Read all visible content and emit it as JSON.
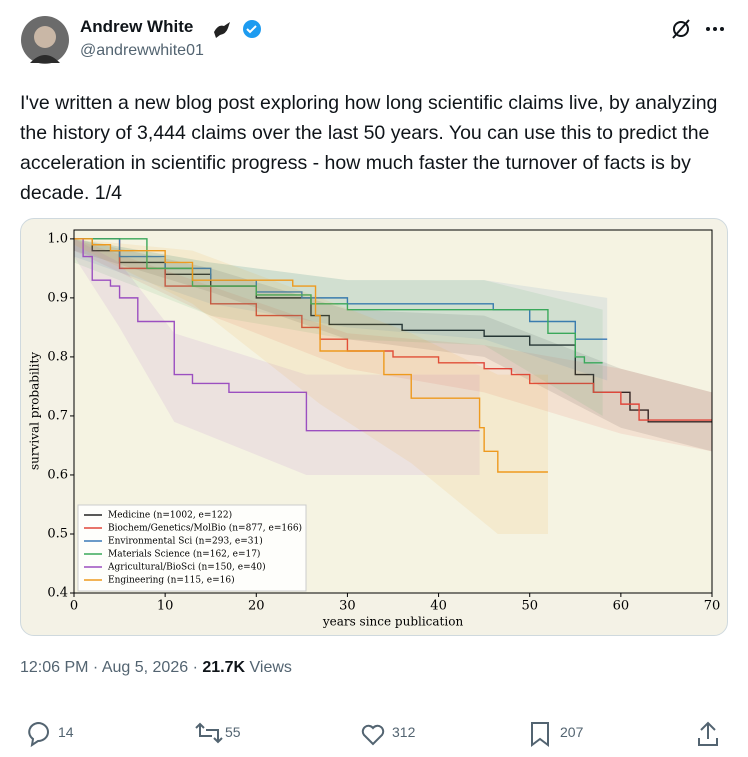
{
  "author": {
    "name": "Andrew White",
    "handle": "@andrewwhite01"
  },
  "text": "I've written a new blog post exploring how long scientific claims live, by analyzing the history of 3,444 claims over the last 50 years. You can use this to predict the acceleration in scientific progress - how much faster the turnover of facts is by decade. 1/4",
  "chart_data": {
    "type": "line",
    "step": true,
    "xlabel": "years since publication",
    "ylabel": "survival probability",
    "xlim": [
      0,
      70
    ],
    "ylim": [
      0.4,
      1.015
    ],
    "xticks": [
      0,
      10,
      20,
      30,
      40,
      50,
      60,
      70
    ],
    "yticks": [
      0.4,
      0.5,
      0.6,
      0.7,
      0.8,
      0.9,
      {
        "value": 1,
        "label": "1.0"
      }
    ],
    "legend": "lower left",
    "series": [
      {
        "name": "Medicine (n=1002, e=122)",
        "color": "#222222",
        "x": [
          0,
          2,
          2,
          5,
          5,
          10,
          10,
          15,
          15,
          20,
          20,
          26,
          26,
          28,
          28,
          36,
          36,
          45,
          45,
          50,
          50,
          55,
          55,
          57,
          57,
          61,
          61,
          63,
          63,
          70
        ],
        "values": [
          1,
          1,
          0.98,
          0.98,
          0.96,
          0.96,
          0.94,
          0.94,
          0.92,
          0.92,
          0.9,
          0.9,
          0.87,
          0.87,
          0.855,
          0.855,
          0.845,
          0.845,
          0.835,
          0.835,
          0.82,
          0.82,
          0.77,
          0.77,
          0.74,
          0.74,
          0.71,
          0.71,
          0.69,
          0.69
        ],
        "band": {
          "x": [
            0,
            15,
            30,
            45,
            60,
            70
          ],
          "lower": [
            0.98,
            0.91,
            0.83,
            0.8,
            0.68,
            0.64
          ],
          "upper": [
            1,
            0.95,
            0.88,
            0.87,
            0.78,
            0.74
          ]
        }
      },
      {
        "name": "Biochem/Genetics/MolBio (n=877, e=166)",
        "color": "#e0463a",
        "x": [
          0,
          5,
          5,
          10,
          10,
          15,
          15,
          20,
          20,
          25,
          25,
          27,
          27,
          30,
          30,
          35,
          35,
          40,
          40,
          45,
          45,
          48,
          48,
          50,
          50,
          57,
          57,
          60,
          60,
          62,
          62,
          70
        ],
        "values": [
          1,
          1,
          0.95,
          0.95,
          0.92,
          0.92,
          0.89,
          0.89,
          0.87,
          0.87,
          0.85,
          0.85,
          0.83,
          0.83,
          0.81,
          0.81,
          0.8,
          0.8,
          0.79,
          0.79,
          0.78,
          0.78,
          0.77,
          0.77,
          0.755,
          0.755,
          0.74,
          0.74,
          0.72,
          0.72,
          0.693,
          0.693
        ],
        "band": {
          "x": [
            0,
            15,
            30,
            45,
            60,
            70
          ],
          "lower": [
            0.98,
            0.87,
            0.78,
            0.74,
            0.67,
            0.64
          ],
          "upper": [
            1,
            0.92,
            0.84,
            0.82,
            0.78,
            0.74
          ]
        }
      },
      {
        "name": "Environmental Sci (n=293, e=31)",
        "color": "#3a78b8",
        "x": [
          0,
          5,
          5,
          10,
          10,
          15,
          15,
          20,
          20,
          25,
          25,
          30,
          30,
          46,
          46,
          50,
          50,
          55,
          55,
          58.5
        ],
        "values": [
          1,
          1,
          0.97,
          0.97,
          0.95,
          0.95,
          0.93,
          0.93,
          0.91,
          0.91,
          0.9,
          0.9,
          0.89,
          0.89,
          0.88,
          0.88,
          0.86,
          0.86,
          0.83,
          0.83
        ],
        "band": {
          "x": [
            0,
            15,
            30,
            45,
            58.5
          ],
          "lower": [
            0.97,
            0.89,
            0.85,
            0.83,
            0.76
          ],
          "upper": [
            1,
            0.96,
            0.93,
            0.93,
            0.9
          ]
        }
      },
      {
        "name": "Materials Science (n=162, e=17)",
        "color": "#3aa85a",
        "x": [
          0,
          8,
          8,
          13,
          13,
          20,
          20,
          26,
          26,
          30,
          30,
          52,
          52,
          55,
          55,
          56,
          56,
          58
        ],
        "values": [
          1,
          1,
          0.95,
          0.95,
          0.92,
          0.92,
          0.905,
          0.905,
          0.89,
          0.89,
          0.88,
          0.88,
          0.84,
          0.84,
          0.8,
          0.8,
          0.79,
          0.79
        ],
        "band": {
          "x": [
            0,
            15,
            30,
            45,
            58
          ],
          "lower": [
            0.96,
            0.87,
            0.83,
            0.82,
            0.7
          ],
          "upper": [
            1,
            0.96,
            0.93,
            0.93,
            0.88
          ]
        }
      },
      {
        "name": "Agricultural/BioSci (n=150, e=40)",
        "color": "#9b4fc0",
        "x": [
          0,
          1,
          1,
          2,
          2,
          4,
          4,
          5,
          5,
          7,
          7,
          11,
          11,
          13,
          13,
          17,
          17,
          25.5,
          25.5,
          44.5
        ],
        "values": [
          1,
          1,
          0.97,
          0.97,
          0.93,
          0.93,
          0.92,
          0.92,
          0.9,
          0.9,
          0.86,
          0.86,
          0.77,
          0.77,
          0.755,
          0.755,
          0.74,
          0.74,
          0.675,
          0.675
        ],
        "band": {
          "x": [
            0,
            5,
            11,
            25.5,
            44.5
          ],
          "lower": [
            0.97,
            0.85,
            0.69,
            0.6,
            0.6
          ],
          "upper": [
            1,
            0.96,
            0.84,
            0.77,
            0.77
          ]
        }
      },
      {
        "name": "Engineering (n=115, e=16)",
        "color": "#ee9a1e",
        "x": [
          0,
          2,
          2,
          4,
          4,
          10,
          10,
          13,
          13,
          24,
          24,
          26.5,
          26.5,
          27,
          27,
          34,
          34,
          37,
          37,
          44.5,
          44.5,
          45,
          45,
          46.5,
          46.5,
          52
        ],
        "values": [
          1,
          1,
          0.99,
          0.99,
          0.98,
          0.98,
          0.96,
          0.96,
          0.93,
          0.93,
          0.92,
          0.92,
          0.87,
          0.87,
          0.81,
          0.81,
          0.77,
          0.77,
          0.73,
          0.73,
          0.68,
          0.68,
          0.64,
          0.64,
          0.605,
          0.605
        ],
        "band": {
          "x": [
            0,
            13,
            27,
            37,
            46.5,
            52
          ],
          "lower": [
            0.99,
            0.89,
            0.72,
            0.62,
            0.5,
            0.5
          ],
          "upper": [
            1,
            0.98,
            0.9,
            0.84,
            0.77,
            0.77
          ]
        }
      }
    ]
  },
  "meta": {
    "timestamp": "12:06 PM · Aug 5, 2026 ·",
    "views": "21.7K",
    "views_label": "Views"
  },
  "actions": {
    "replies": 14,
    "reposts": 55,
    "likes": 312,
    "bookmarks": 207
  }
}
